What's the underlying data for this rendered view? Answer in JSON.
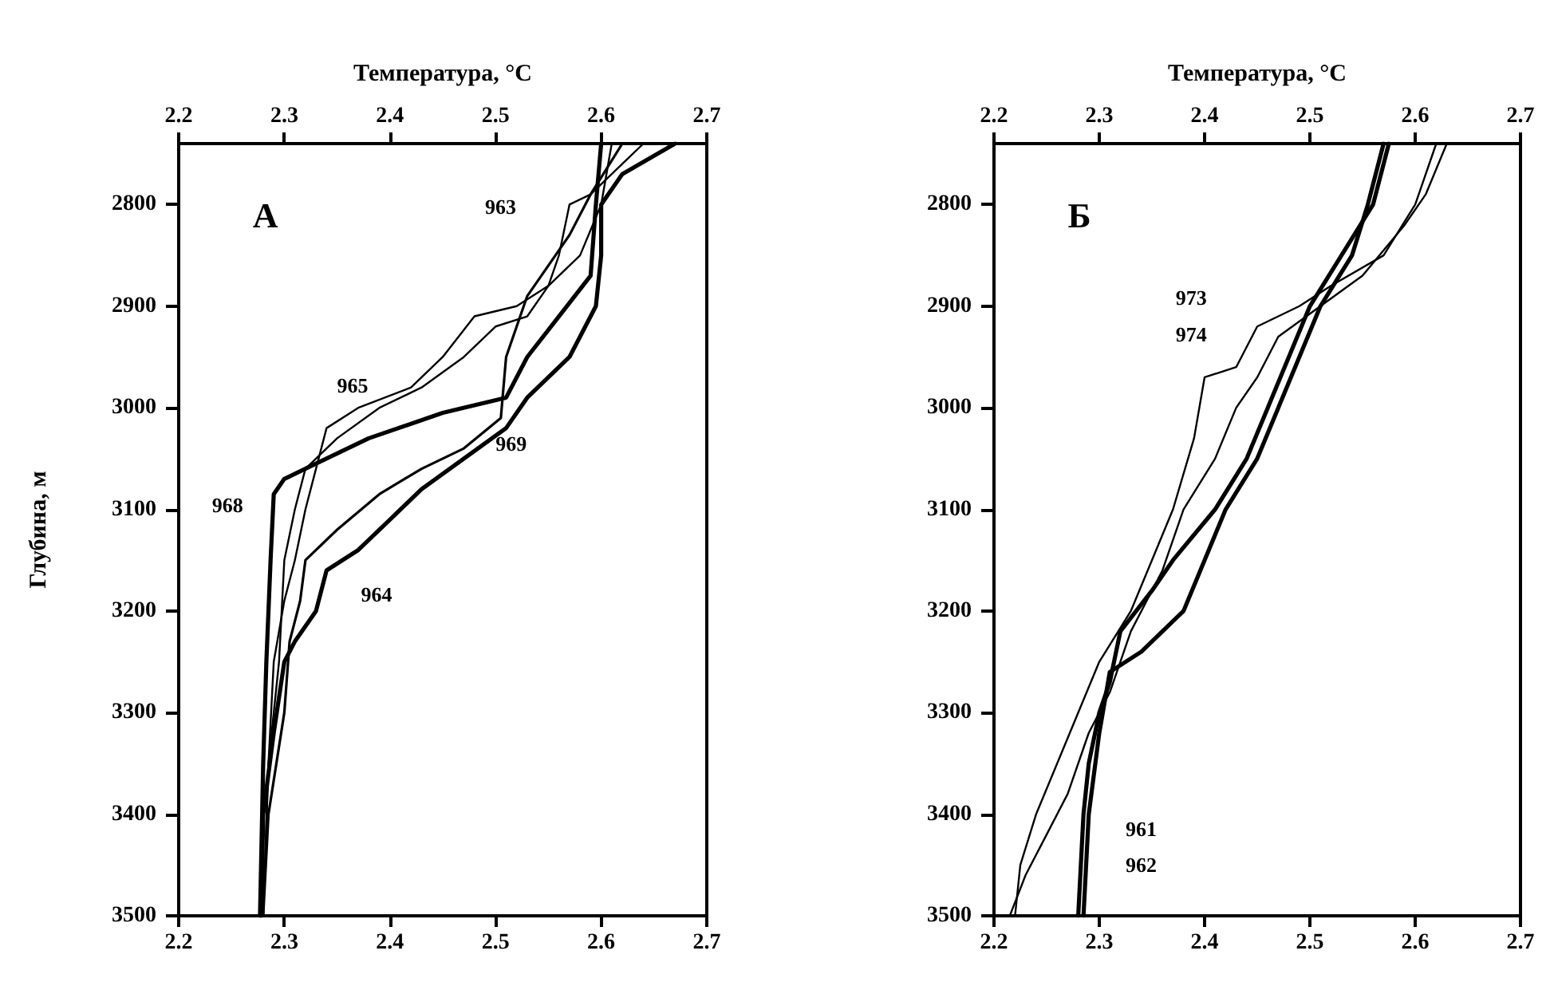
{
  "chart_data": [
    {
      "type": "line",
      "title": "А",
      "x2label": "Температура, °C",
      "ylabel": "Глубина, м",
      "xlim": [
        2.2,
        2.7
      ],
      "xticks": [
        2.2,
        2.3,
        2.4,
        2.5,
        2.6,
        2.7
      ],
      "x2lim": [
        2.2,
        2.7
      ],
      "x2ticks": [
        2.2,
        2.3,
        2.4,
        2.5,
        2.6,
        2.7
      ],
      "ylim": [
        3500,
        2740
      ],
      "yticks": [
        2800,
        2900,
        3000,
        3100,
        3200,
        3300,
        3400,
        3500
      ],
      "grid": false,
      "legend": false,
      "marker": "none",
      "line_style": "solid",
      "series": [
        {
          "name": "963",
          "color": "#000000",
          "x": [
            2.64,
            2.62,
            2.59,
            2.57,
            2.56,
            2.55,
            2.53,
            2.5,
            2.47,
            2.43,
            2.39,
            2.35,
            2.32,
            2.31,
            2.3,
            2.295,
            2.285,
            2.28
          ],
          "values": [
            2740,
            2760,
            2790,
            2800,
            2850,
            2880,
            2910,
            2920,
            2950,
            2980,
            3000,
            3030,
            3060,
            3100,
            3150,
            3250,
            3350,
            3500
          ]
        },
        {
          "name": "969",
          "color": "#000000",
          "x": [
            2.62,
            2.59,
            2.57,
            2.55,
            2.53,
            2.51,
            2.505,
            2.47,
            2.43,
            2.39,
            2.35,
            2.32,
            2.315,
            2.305,
            2.3,
            2.285,
            2.28
          ],
          "values": [
            2740,
            2790,
            2830,
            2860,
            2890,
            2950,
            3010,
            3040,
            3060,
            3085,
            3120,
            3150,
            3190,
            3230,
            3300,
            3400,
            3500
          ]
        },
        {
          "name": "965",
          "color": "#000000",
          "x": [
            2.61,
            2.6,
            2.58,
            2.55,
            2.52,
            2.48,
            2.45,
            2.42,
            2.37,
            2.34,
            2.33,
            2.32,
            2.31,
            2.3,
            2.29,
            2.285,
            2.28
          ],
          "values": [
            2740,
            2800,
            2850,
            2880,
            2900,
            2910,
            2950,
            2980,
            3000,
            3020,
            3060,
            3100,
            3150,
            3190,
            3250,
            3350,
            3500
          ]
        },
        {
          "name": "968",
          "color": "#000000",
          "x": [
            2.6,
            2.595,
            2.59,
            2.56,
            2.53,
            2.51,
            2.45,
            2.38,
            2.33,
            2.3,
            2.29,
            2.287,
            2.283,
            2.28,
            2.277
          ],
          "values": [
            2740,
            2800,
            2870,
            2910,
            2950,
            2990,
            3005,
            3030,
            3055,
            3070,
            3085,
            3150,
            3250,
            3350,
            3500
          ]
        },
        {
          "name": "964",
          "color": "#000000",
          "x": [
            2.67,
            2.62,
            2.6,
            2.6,
            2.595,
            2.57,
            2.53,
            2.51,
            2.47,
            2.43,
            2.4,
            2.37,
            2.34,
            2.33,
            2.31,
            2.3,
            2.29,
            2.28,
            2.278
          ],
          "values": [
            2740,
            2770,
            2800,
            2850,
            2900,
            2950,
            2990,
            3020,
            3050,
            3080,
            3110,
            3140,
            3160,
            3200,
            3230,
            3250,
            3320,
            3400,
            3500
          ]
        }
      ]
    },
    {
      "type": "line",
      "title": "Б",
      "x2label": "Температура, °C",
      "xlim": [
        2.2,
        2.7
      ],
      "xticks": [
        2.2,
        2.3,
        2.4,
        2.5,
        2.6,
        2.7
      ],
      "x2lim": [
        2.2,
        2.7
      ],
      "x2ticks": [
        2.2,
        2.3,
        2.4,
        2.5,
        2.6,
        2.7
      ],
      "ylim": [
        3500,
        2740
      ],
      "yticks": [
        2800,
        2900,
        3000,
        3100,
        3200,
        3300,
        3400,
        3500
      ],
      "grid": false,
      "legend": false,
      "marker": "none",
      "line_style": "solid",
      "series": [
        {
          "name": "973",
          "color": "#000000",
          "x": [
            2.62,
            2.6,
            2.57,
            2.52,
            2.49,
            2.45,
            2.43,
            2.4,
            2.39,
            2.37,
            2.35,
            2.33,
            2.3,
            2.28,
            2.26,
            2.24,
            2.225,
            2.22
          ],
          "values": [
            2740,
            2800,
            2850,
            2880,
            2900,
            2920,
            2960,
            2970,
            3030,
            3100,
            3150,
            3200,
            3250,
            3300,
            3350,
            3400,
            3450,
            3500
          ]
        },
        {
          "name": "974",
          "color": "#000000",
          "x": [
            2.63,
            2.61,
            2.59,
            2.55,
            2.51,
            2.47,
            2.45,
            2.43,
            2.41,
            2.38,
            2.36,
            2.33,
            2.31,
            2.29,
            2.27,
            2.25,
            2.23,
            2.215
          ],
          "values": [
            2740,
            2790,
            2820,
            2870,
            2900,
            2930,
            2970,
            3000,
            3050,
            3100,
            3160,
            3220,
            3280,
            3320,
            3380,
            3420,
            3460,
            3500
          ]
        },
        {
          "name": "961",
          "color": "#000000",
          "x": [
            2.575,
            2.56,
            2.53,
            2.5,
            2.48,
            2.46,
            2.44,
            2.41,
            2.37,
            2.35,
            2.32,
            2.31,
            2.3,
            2.29,
            2.285,
            2.28
          ],
          "values": [
            2740,
            2800,
            2850,
            2900,
            2950,
            3000,
            3050,
            3100,
            3150,
            3180,
            3220,
            3270,
            3300,
            3350,
            3400,
            3500
          ]
        },
        {
          "name": "962",
          "color": "#000000",
          "x": [
            2.57,
            2.555,
            2.54,
            2.51,
            2.49,
            2.47,
            2.45,
            2.42,
            2.4,
            2.38,
            2.34,
            2.31,
            2.3,
            2.29,
            2.285
          ],
          "values": [
            2740,
            2800,
            2850,
            2900,
            2950,
            3000,
            3050,
            3100,
            3150,
            3200,
            3240,
            3260,
            3320,
            3400,
            3500
          ]
        }
      ]
    }
  ]
}
